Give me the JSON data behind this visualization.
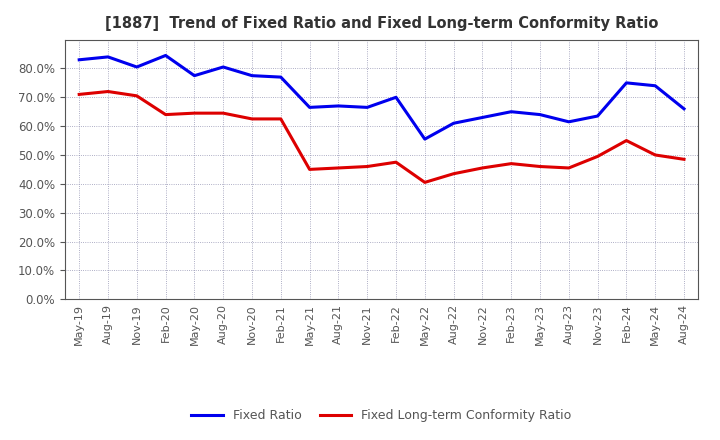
{
  "title": "[1887]  Trend of Fixed Ratio and Fixed Long-term Conformity Ratio",
  "x_labels": [
    "May-19",
    "Aug-19",
    "Nov-19",
    "Feb-20",
    "May-20",
    "Aug-20",
    "Nov-20",
    "Feb-21",
    "May-21",
    "Aug-21",
    "Nov-21",
    "Feb-22",
    "May-22",
    "Aug-22",
    "Nov-22",
    "Feb-23",
    "May-23",
    "Aug-23",
    "Nov-23",
    "Feb-24",
    "May-24",
    "Aug-24"
  ],
  "fixed_ratio": [
    83.0,
    84.0,
    80.5,
    84.5,
    77.5,
    80.5,
    77.5,
    77.0,
    66.5,
    67.0,
    66.5,
    70.0,
    55.5,
    61.0,
    63.0,
    65.0,
    64.0,
    61.5,
    63.5,
    75.0,
    74.0,
    66.0
  ],
  "fixed_lt_ratio": [
    71.0,
    72.0,
    70.5,
    64.0,
    64.5,
    64.5,
    62.5,
    62.5,
    45.0,
    45.5,
    46.0,
    47.5,
    40.5,
    43.5,
    45.5,
    47.0,
    46.0,
    45.5,
    49.5,
    55.0,
    50.0,
    48.5
  ],
  "fixed_ratio_color": "#0000EE",
  "fixed_lt_ratio_color": "#DD0000",
  "background_color": "#FFFFFF",
  "plot_bg_color": "#FFFFFF",
  "grid_color": "#8888AA",
  "ylim": [
    0,
    90
  ],
  "yticks": [
    0.0,
    10.0,
    20.0,
    30.0,
    40.0,
    50.0,
    60.0,
    70.0,
    80.0
  ],
  "legend_fixed_ratio": "Fixed Ratio",
  "legend_fixed_lt_ratio": "Fixed Long-term Conformity Ratio",
  "title_color": "#333333",
  "tick_color": "#555555"
}
